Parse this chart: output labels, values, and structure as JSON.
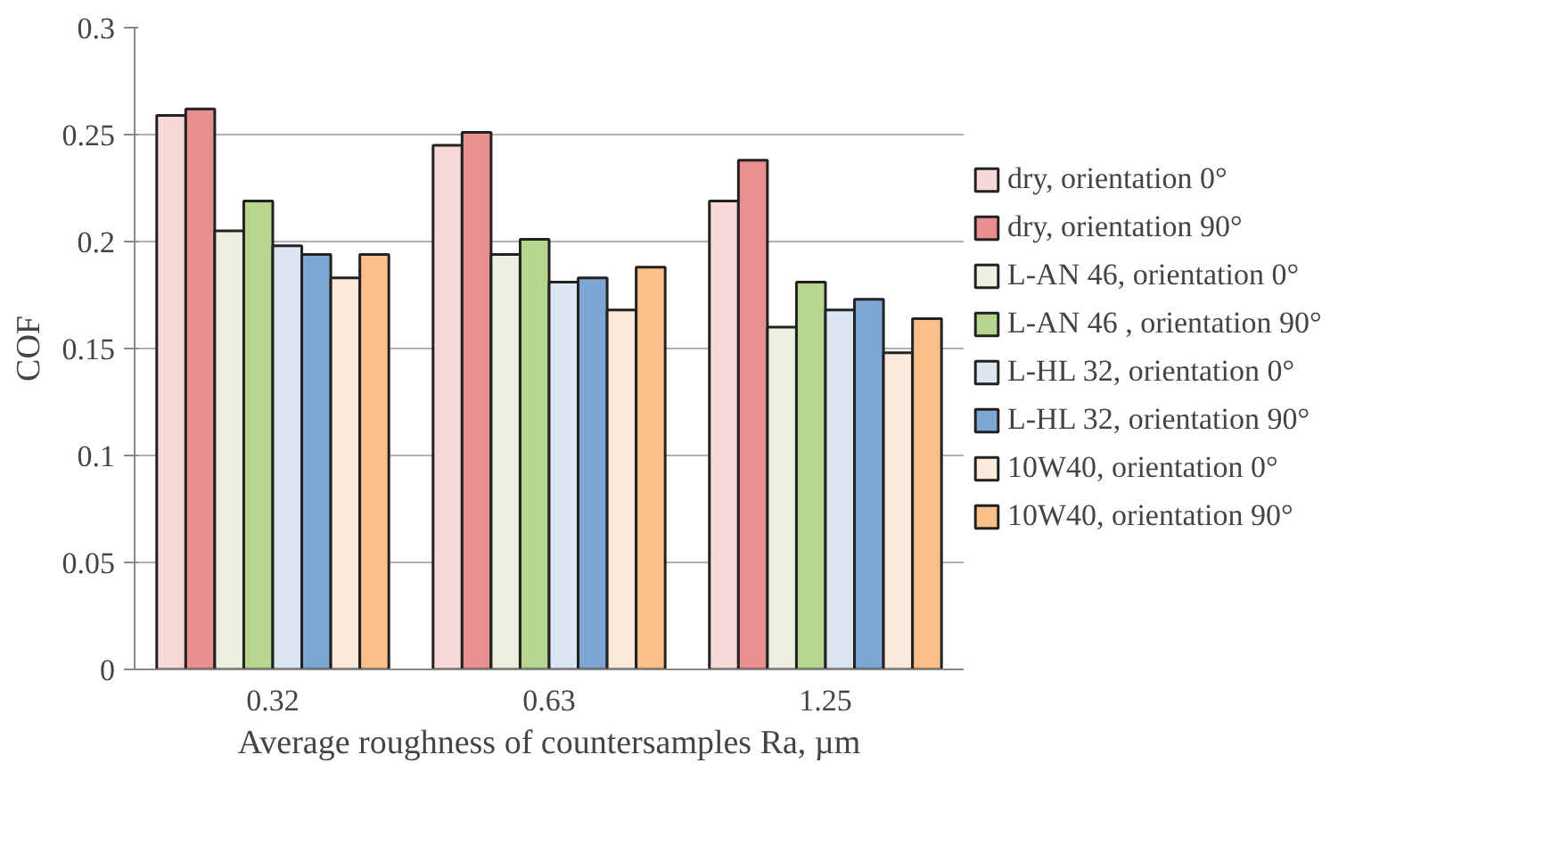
{
  "chart_data": {
    "type": "bar",
    "xlabel": "Average roughness of countersamples Ra, µm",
    "ylabel": "COF",
    "categories": [
      "0.32",
      "0.63",
      "1.25"
    ],
    "series": [
      {
        "name": "dry, orientation 0°",
        "color": "#f8d9d8",
        "values": [
          0.259,
          0.245,
          0.219
        ]
      },
      {
        "name": "dry, orientation 90°",
        "color": "#e8908f",
        "values": [
          0.262,
          0.251,
          0.238
        ]
      },
      {
        "name": "L-AN 46, orientation 0°",
        "color": "#ebf1de",
        "values": [
          0.205,
          0.194,
          0.16
        ]
      },
      {
        "name": "L-AN 46 , orientation 90°",
        "color": "#b7d58f",
        "values": [
          0.219,
          0.201,
          0.181
        ]
      },
      {
        "name": "L-HL 32, orientation 0°",
        "color": "#dce6f2",
        "values": [
          0.198,
          0.181,
          0.168
        ]
      },
      {
        "name": "L-HL 32, orientation 90°",
        "color": "#7ea6d2",
        "values": [
          0.194,
          0.183,
          0.173
        ]
      },
      {
        "name": "10W40, orientation 0°",
        "color": "#fde9d9",
        "values": [
          0.183,
          0.168,
          0.148
        ]
      },
      {
        "name": "10W40, orientation 90°",
        "color": "#fbbf8a",
        "values": [
          0.194,
          0.188,
          0.164
        ]
      }
    ],
    "ylim": [
      0,
      0.3
    ],
    "yticks": [
      0,
      0.05,
      0.1,
      0.15,
      0.2,
      0.25,
      0.3
    ],
    "grid": "y",
    "legend": "right"
  }
}
